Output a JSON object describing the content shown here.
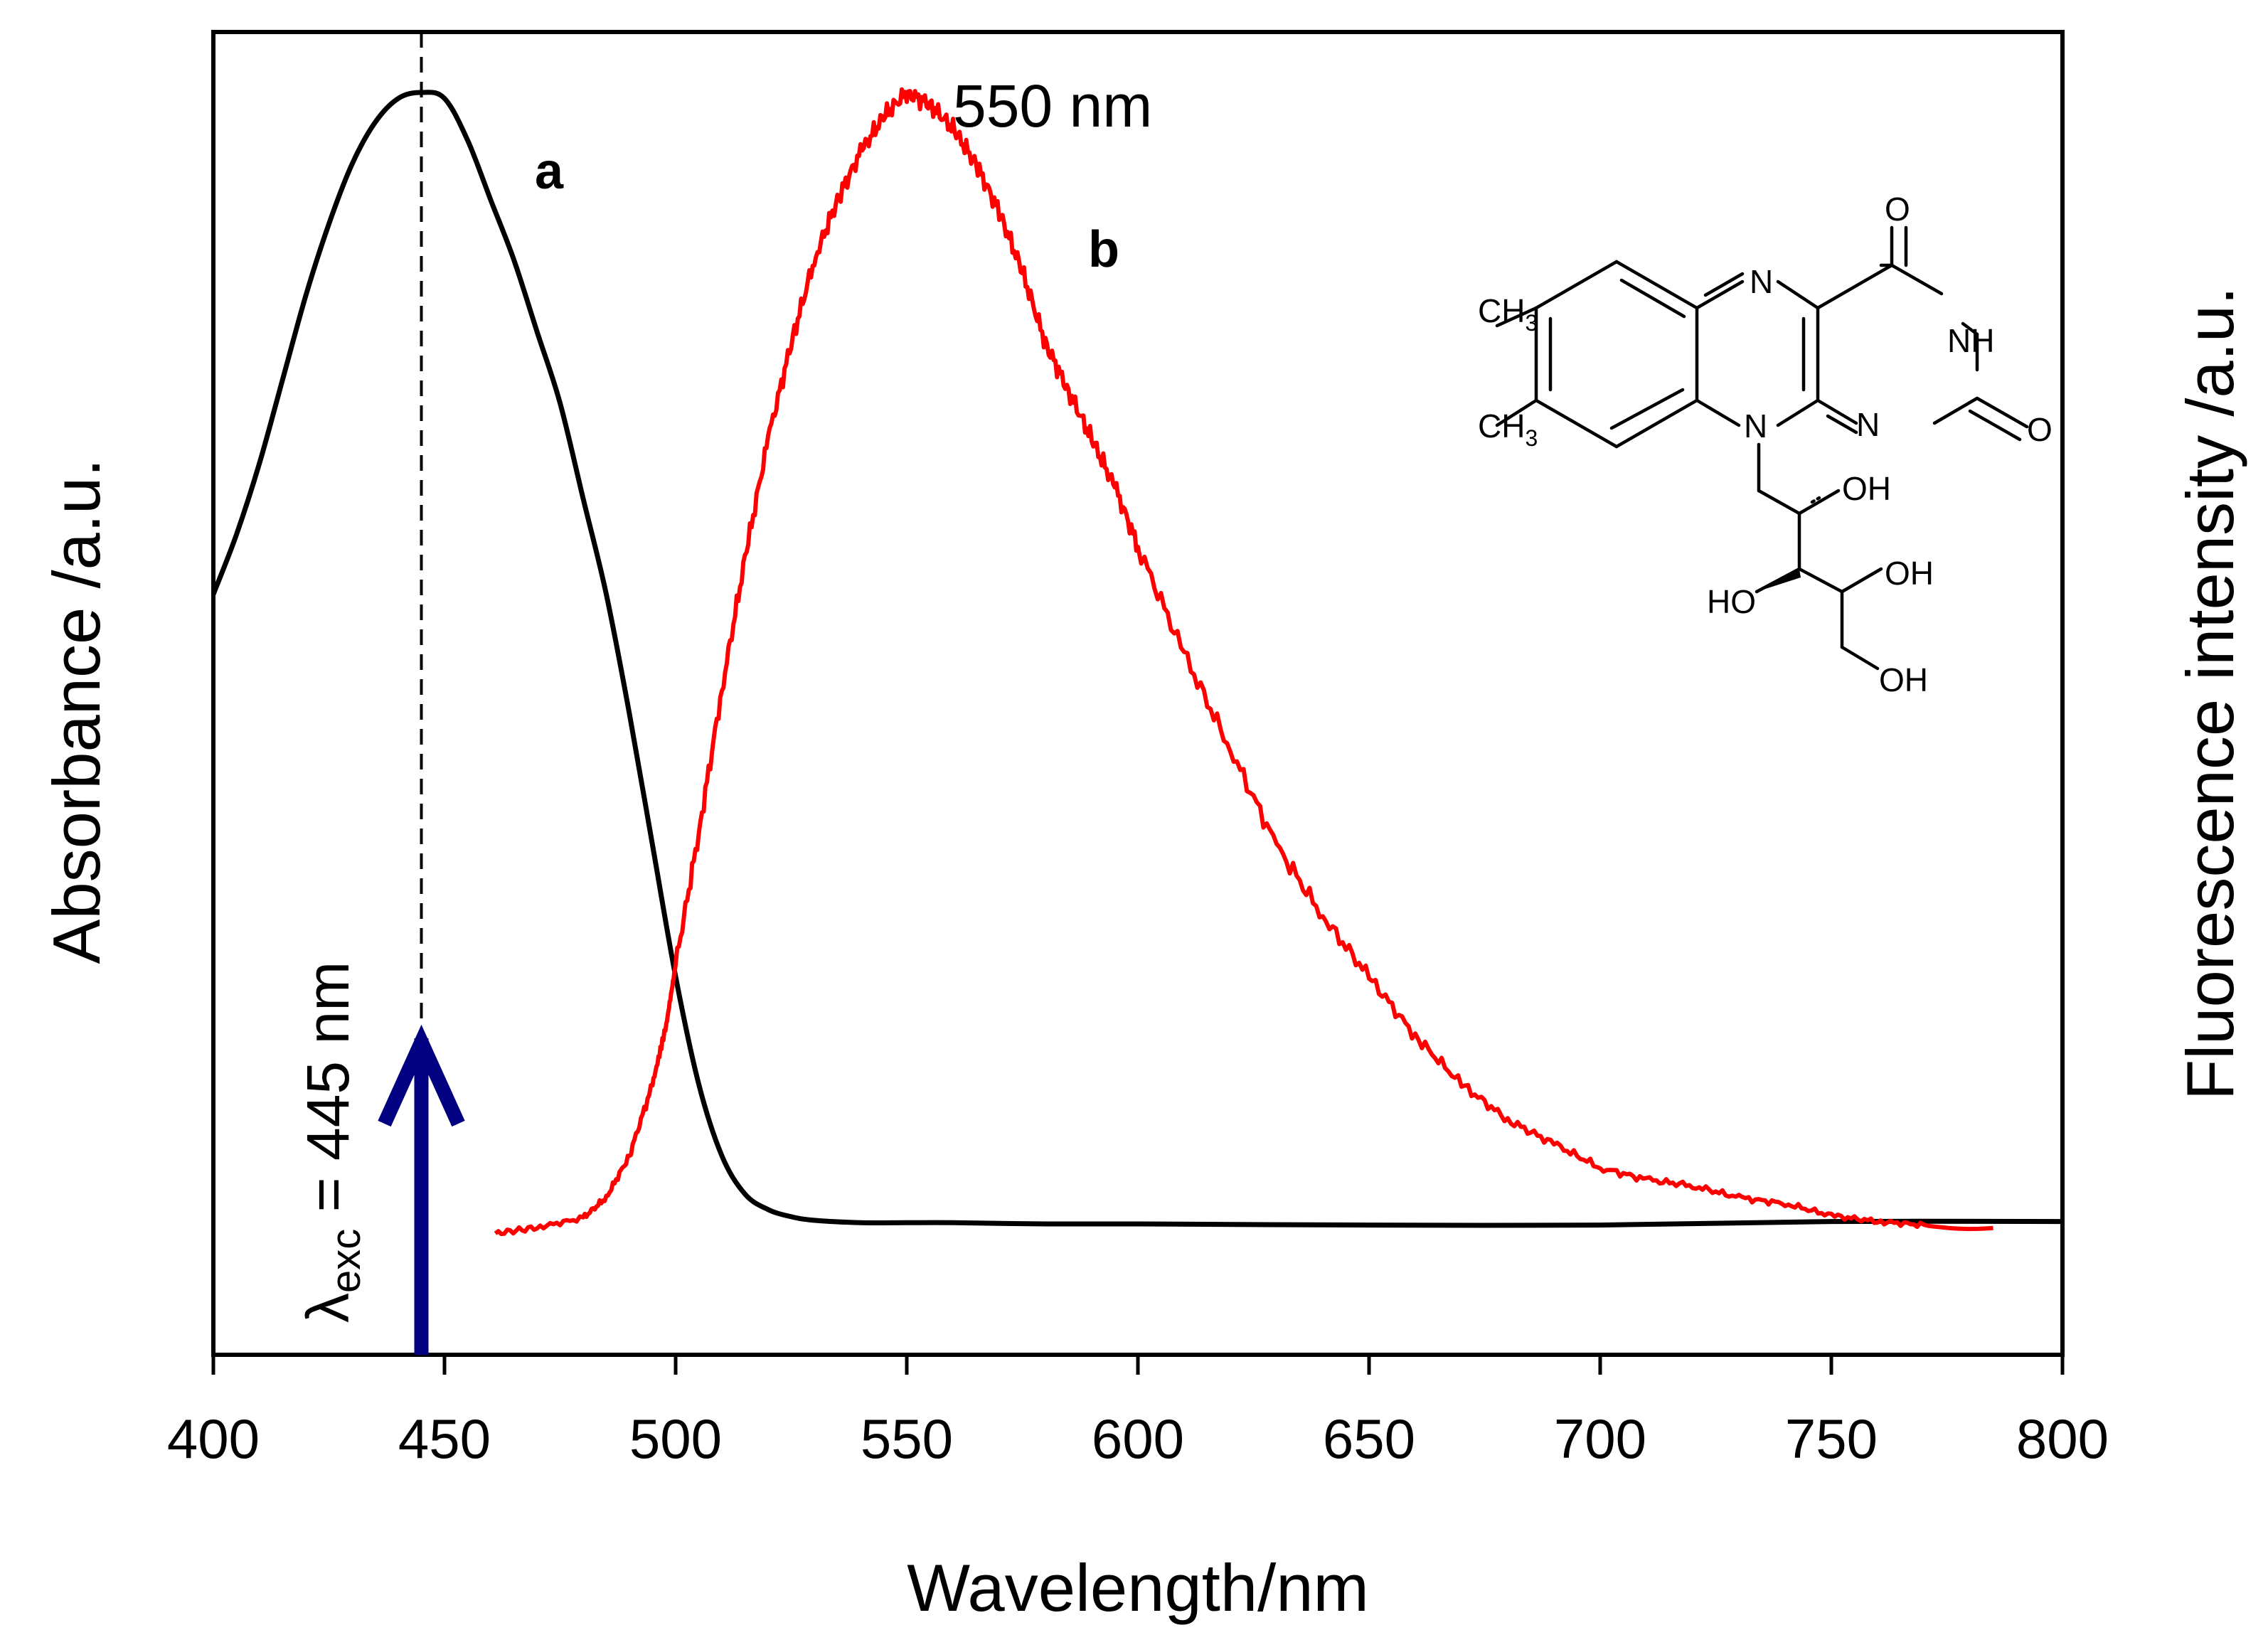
{
  "chart_data": {
    "type": "line",
    "title": "",
    "xlabel": "Wavelength/nm",
    "ylabel_left": "Absorbance /a.u.",
    "ylabel_right": "Fluorescence intensity /a.u.",
    "xlim": [
      400,
      800
    ],
    "ylim": [
      0,
      1
    ],
    "x_ticks": [
      400,
      450,
      500,
      550,
      600,
      650,
      700,
      750,
      800
    ],
    "grid": false,
    "series": [
      {
        "name": "a",
        "label": "a",
        "color": "#000000",
        "axis": "left",
        "x": [
          400,
          405,
          410,
          415,
          420,
          425,
          430,
          435,
          440,
          445,
          450,
          455,
          460,
          465,
          470,
          475,
          480,
          485,
          490,
          495,
          500,
          505,
          510,
          515,
          520,
          525,
          530,
          540,
          550,
          560,
          580,
          600,
          650,
          700,
          750,
          800
        ],
        "y": [
          0.58,
          0.63,
          0.69,
          0.76,
          0.83,
          0.89,
          0.94,
          0.975,
          0.995,
          1.0,
          0.995,
          0.96,
          0.91,
          0.86,
          0.8,
          0.74,
          0.66,
          0.58,
          0.48,
          0.37,
          0.26,
          0.17,
          0.11,
          0.078,
          0.065,
          0.059,
          0.056,
          0.054,
          0.054,
          0.054,
          0.053,
          0.053,
          0.052,
          0.052,
          0.055,
          0.055
        ]
      },
      {
        "name": "b",
        "label": "b",
        "color": "#ff0000",
        "axis": "right",
        "x": [
          461,
          470,
          480,
          485,
          490,
          495,
          498,
          500,
          505,
          510,
          515,
          520,
          525,
          530,
          535,
          540,
          545,
          550,
          555,
          560,
          565,
          570,
          575,
          580,
          585,
          590,
          595,
          600,
          610,
          620,
          630,
          640,
          650,
          660,
          670,
          680,
          690,
          700,
          710,
          720,
          730,
          740,
          750,
          760,
          770,
          785
        ],
        "y": [
          0.045,
          0.05,
          0.058,
          0.075,
          0.11,
          0.17,
          0.22,
          0.27,
          0.38,
          0.5,
          0.61,
          0.71,
          0.79,
          0.86,
          0.91,
          0.95,
          0.98,
          1.0,
          0.99,
          0.97,
          0.94,
          0.9,
          0.85,
          0.79,
          0.75,
          0.71,
          0.67,
          0.62,
          0.53,
          0.45,
          0.37,
          0.31,
          0.26,
          0.21,
          0.17,
          0.14,
          0.12,
          0.1,
          0.09,
          0.085,
          0.075,
          0.07,
          0.06,
          0.055,
          0.052,
          0.05
        ]
      }
    ],
    "annotations": {
      "excitation": {
        "text_main": "λ",
        "text_sub": "exc",
        "text_rest": " = 445 nm",
        "x": 445
      },
      "emission_peak": {
        "text": "550 nm",
        "x": 550
      }
    }
  },
  "structure": {
    "name": "riboflavin",
    "labels": {
      "ch3": "CH",
      "ch3_sub": "3",
      "n": "N",
      "nh": "NH",
      "o": "O",
      "oh": "OH",
      "ho": "HO"
    }
  }
}
